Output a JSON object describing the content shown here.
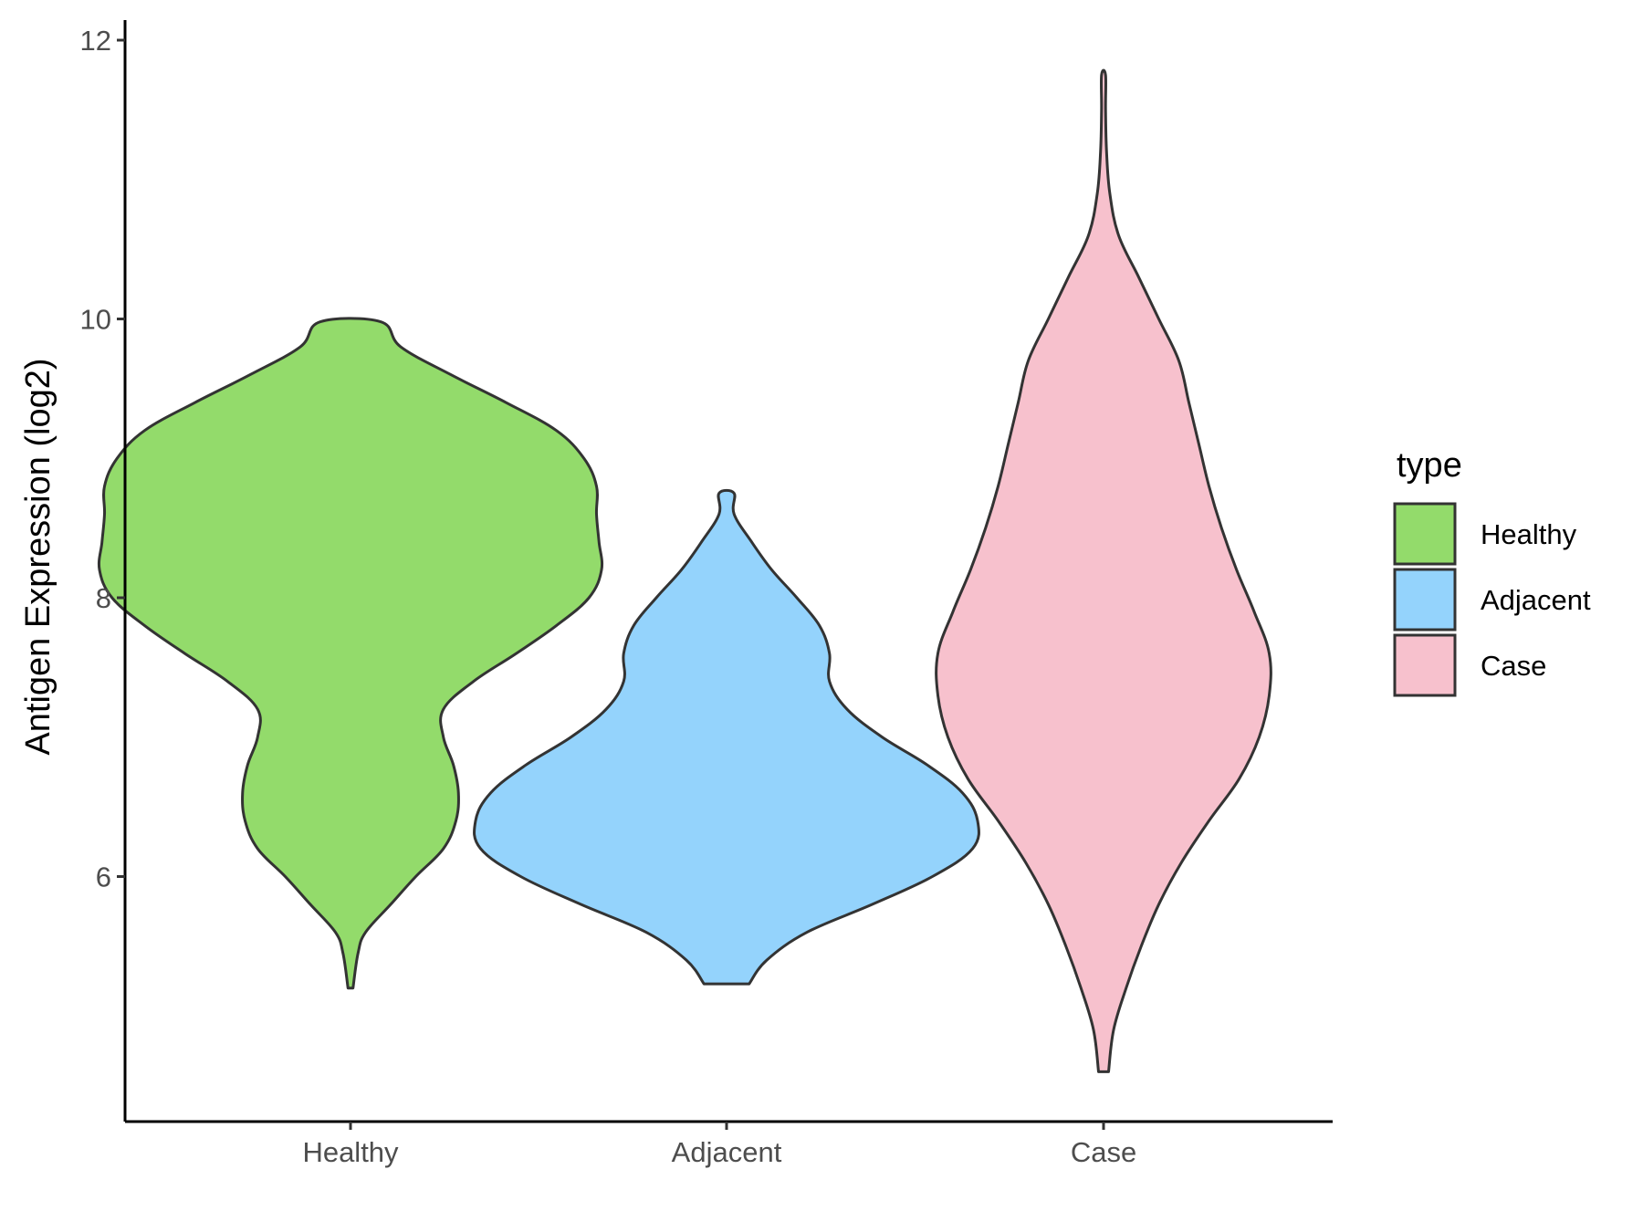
{
  "chart_data": {
    "type": "violin",
    "ylabel": "Antigen Expression (log2)",
    "xlabel": "",
    "ylim": [
      4.45,
      12.3
    ],
    "yticks": [
      6,
      8,
      10,
      12
    ],
    "categories": [
      "Healthy",
      "Adjacent",
      "Case"
    ],
    "colors": {
      "Healthy": "#93DB6B",
      "Adjacent": "#94D3FC",
      "Case": "#F7C1CD"
    },
    "grid": false,
    "legend": {
      "title": "type",
      "position": "right",
      "entries": [
        "Healthy",
        "Adjacent",
        "Case"
      ]
    },
    "violins": [
      {
        "name": "Healthy",
        "profile": [
          [
            5.2,
            0.01
          ],
          [
            5.45,
            0.03
          ],
          [
            5.6,
            0.06
          ],
          [
            5.8,
            0.16
          ],
          [
            6.0,
            0.26
          ],
          [
            6.2,
            0.37
          ],
          [
            6.4,
            0.42
          ],
          [
            6.6,
            0.43
          ],
          [
            6.8,
            0.41
          ],
          [
            7.0,
            0.37
          ],
          [
            7.2,
            0.37
          ],
          [
            7.4,
            0.49
          ],
          [
            7.6,
            0.66
          ],
          [
            7.8,
            0.82
          ],
          [
            8.0,
            0.95
          ],
          [
            8.2,
            1.0
          ],
          [
            8.4,
            0.99
          ],
          [
            8.6,
            0.98
          ],
          [
            8.8,
            0.98
          ],
          [
            9.0,
            0.93
          ],
          [
            9.2,
            0.82
          ],
          [
            9.4,
            0.62
          ],
          [
            9.6,
            0.4
          ],
          [
            9.8,
            0.2
          ],
          [
            9.98,
            0.12
          ]
        ]
      },
      {
        "name": "Adjacent",
        "profile": [
          [
            5.23,
            0.09
          ],
          [
            5.4,
            0.16
          ],
          [
            5.6,
            0.32
          ],
          [
            5.8,
            0.58
          ],
          [
            6.0,
            0.82
          ],
          [
            6.2,
            0.98
          ],
          [
            6.4,
            1.0
          ],
          [
            6.6,
            0.94
          ],
          [
            6.8,
            0.8
          ],
          [
            7.0,
            0.62
          ],
          [
            7.2,
            0.48
          ],
          [
            7.4,
            0.41
          ],
          [
            7.6,
            0.41
          ],
          [
            7.8,
            0.37
          ],
          [
            8.0,
            0.28
          ],
          [
            8.2,
            0.18
          ],
          [
            8.4,
            0.1
          ],
          [
            8.6,
            0.03
          ],
          [
            8.75,
            0.03
          ]
        ]
      },
      {
        "name": "Case",
        "profile": [
          [
            4.6,
            0.02
          ],
          [
            4.9,
            0.04
          ],
          [
            5.2,
            0.09
          ],
          [
            5.5,
            0.15
          ],
          [
            5.8,
            0.22
          ],
          [
            6.1,
            0.31
          ],
          [
            6.4,
            0.42
          ],
          [
            6.7,
            0.54
          ],
          [
            7.0,
            0.62
          ],
          [
            7.3,
            0.66
          ],
          [
            7.6,
            0.66
          ],
          [
            7.9,
            0.6
          ],
          [
            8.2,
            0.53
          ],
          [
            8.5,
            0.47
          ],
          [
            8.8,
            0.42
          ],
          [
            9.1,
            0.38
          ],
          [
            9.4,
            0.34
          ],
          [
            9.7,
            0.3
          ],
          [
            10.0,
            0.22
          ],
          [
            10.3,
            0.14
          ],
          [
            10.6,
            0.06
          ],
          [
            10.9,
            0.025
          ],
          [
            11.2,
            0.012
          ],
          [
            11.5,
            0.008
          ],
          [
            11.75,
            0.008
          ]
        ]
      }
    ]
  }
}
